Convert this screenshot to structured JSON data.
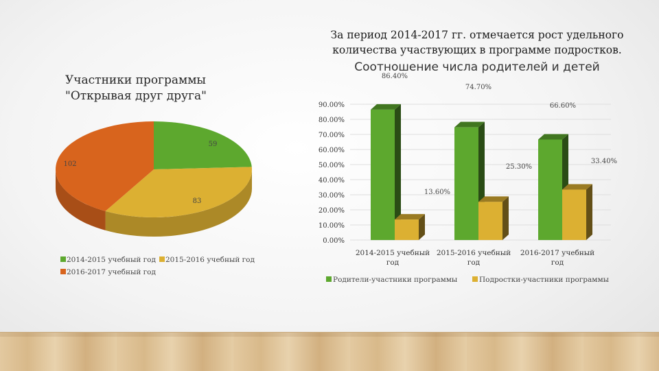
{
  "header": {
    "line1": "За период 2014-2017 гг. отмечается рост удельного",
    "line2": "количества участвующих в программе подростков."
  },
  "colors": {
    "pie": [
      "#5da82e",
      "#dcb032",
      "#d8641d"
    ],
    "bar_parents": "#5da82e",
    "bar_teens": "#dcb032"
  },
  "chart_data": [
    {
      "type": "pie",
      "title_line1": "Участники программы",
      "title_line2": "\"Открывая друг друга\"",
      "categories": [
        "2014-2015 учебный год",
        "2015-2016 учебный год",
        "2016-2017 учебный год"
      ],
      "values": [
        59,
        83,
        102
      ],
      "legend": "bottom"
    },
    {
      "type": "bar",
      "title": "Соотношение числа родителей и детей",
      "categories": [
        "2014-2015 учебный год",
        "2015-2016 учебный год",
        "2016-2017 учебный год"
      ],
      "series": [
        {
          "name": "Родители-участники программы",
          "values": [
            86.4,
            74.7,
            66.6
          ],
          "labels": [
            "86.40%",
            "74.70%",
            "66.60%"
          ]
        },
        {
          "name": "Подростки-участники программы",
          "values": [
            13.6,
            25.3,
            33.4
          ],
          "labels": [
            "13.60%",
            "25.30%",
            "33.40%"
          ]
        }
      ],
      "ylim": [
        0,
        90
      ],
      "yticks": [
        "0.00%",
        "10.00%",
        "20.00%",
        "30.00%",
        "40.00%",
        "50.00%",
        "60.00%",
        "70.00%",
        "80.00%",
        "90.00%"
      ],
      "legend": "bottom"
    }
  ]
}
